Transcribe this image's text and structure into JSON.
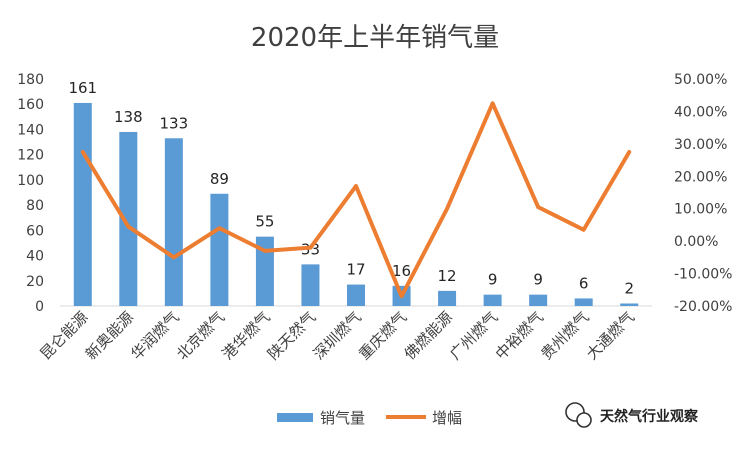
{
  "chart_data": {
    "type": "bar+line",
    "title": "2020年上半年销气量",
    "categories": [
      "昆仑能源",
      "新奥能源",
      "华润燃气",
      "北京燃气",
      "港华燃气",
      "陕天然气",
      "深圳燃气",
      "重庆燃气",
      "佛燃能源",
      "广州燃气",
      "中裕燃气",
      "贵州燃气",
      "大通燃气"
    ],
    "series": [
      {
        "name": "销气量",
        "type": "bar",
        "axis": "left",
        "color": "#5B9BD5",
        "values": [
          161,
          138,
          133,
          89,
          55,
          33,
          17,
          16,
          12,
          9,
          9,
          6,
          2
        ],
        "labels": [
          "161",
          "138",
          "133",
          "89",
          "55",
          "33",
          "17",
          "16",
          "12",
          "9",
          "9",
          "6",
          "2"
        ]
      },
      {
        "name": "增幅",
        "type": "line",
        "axis": "right",
        "color": "#ED7D31",
        "values": [
          0.275,
          0.045,
          -0.05,
          0.04,
          -0.03,
          -0.02,
          0.17,
          -0.17,
          0.1,
          0.425,
          0.105,
          0.035,
          0.275
        ]
      }
    ],
    "y_left": {
      "min": 0,
      "max": 180,
      "step": 20,
      "ticks": [
        "0",
        "20",
        "40",
        "60",
        "80",
        "100",
        "120",
        "140",
        "160",
        "180"
      ]
    },
    "y_right": {
      "min": -0.2,
      "max": 0.5,
      "step": 0.1,
      "ticks": [
        "-20.00%",
        "-10.00%",
        "0.00%",
        "10.00%",
        "20.00%",
        "30.00%",
        "40.00%",
        "50.00%"
      ]
    },
    "legend": {
      "position": "bottom",
      "items": [
        "销气量",
        "增幅"
      ]
    },
    "grid": false
  },
  "watermark": {
    "text": "天然气行业观察",
    "icon": "wechat-icon"
  }
}
